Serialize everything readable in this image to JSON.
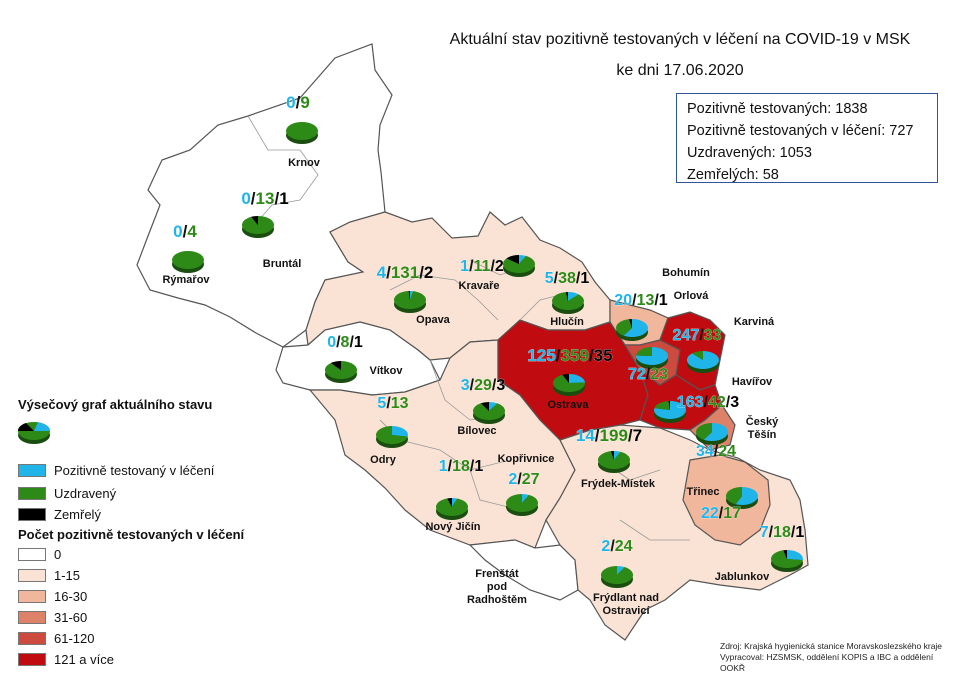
{
  "title": {
    "line1": "Aktuální stav pozitivně testovaných v léčení na COVID-19 v MSK",
    "line2": "ke dni 17.06.2020"
  },
  "stats": {
    "positive": "Pozitivně testovaných: 1838",
    "in_treatment": "Pozitivně testovaných v léčení: 727",
    "recovered": "Uzdravených: 1053",
    "deaths": "Zemřelých: 58"
  },
  "legend_pie": {
    "title": "Výsečový graf aktuálního stavu",
    "items": [
      {
        "label": "Pozitivně testovaný v léčení",
        "color": "#1fb5e8"
      },
      {
        "label": "Uzdravený",
        "color": "#2e8a16"
      },
      {
        "label": "Zemřelý",
        "color": "#000000"
      }
    ]
  },
  "legend_choropleth": {
    "title": "Počet pozitivně testovaných v léčení",
    "classes": [
      {
        "label": "0",
        "color": "#ffffff"
      },
      {
        "label": "1-15",
        "color": "#fae3d4"
      },
      {
        "label": "16-30",
        "color": "#f0b79c"
      },
      {
        "label": "31-60",
        "color": "#dd8268"
      },
      {
        "label": "61-120",
        "color": "#cc4a3e"
      },
      {
        "label": "121 a více",
        "color": "#c00c10"
      }
    ]
  },
  "source": {
    "line1": "Zdroj: Krajská hygienická stanice Moravskoslezského kraje",
    "line2": "Vypracoval: HZSMSK, oddělení KOPIS a IBC a oddělení OOKŘ"
  },
  "regions": [
    {
      "name": "Krnov",
      "active": 0,
      "recovered": 9,
      "deaths": null,
      "counts": [
        "0",
        "9"
      ],
      "class": "0"
    },
    {
      "name": "Bruntál",
      "active": 0,
      "recovered": 13,
      "deaths": 1,
      "counts": [
        "0",
        "13",
        "1"
      ],
      "class": "0"
    },
    {
      "name": "Rýmařov",
      "active": 0,
      "recovered": 4,
      "deaths": null,
      "counts": [
        "0",
        "4"
      ],
      "class": "0"
    },
    {
      "name": "Vítkov",
      "active": 0,
      "recovered": 8,
      "deaths": 1,
      "counts": [
        "0",
        "8",
        "1"
      ],
      "class": "0"
    },
    {
      "name": "Opava",
      "active": 4,
      "recovered": 131,
      "deaths": 2,
      "counts": [
        "4",
        "131",
        "2"
      ],
      "class": "1-15"
    },
    {
      "name": "Kravaře",
      "active": 1,
      "recovered": 11,
      "deaths": 2,
      "counts": [
        "1",
        "11",
        "2"
      ],
      "class": "1-15"
    },
    {
      "name": "Hlučín",
      "active": 5,
      "recovered": 38,
      "deaths": 1,
      "counts": [
        "5",
        "38",
        "1"
      ],
      "class": "1-15"
    },
    {
      "name": "Bohumín",
      "active": 20,
      "recovered": 13,
      "deaths": 1,
      "counts": [
        "20",
        "13",
        "1"
      ],
      "class": "16-30"
    },
    {
      "name": "Orlová",
      "active": 72,
      "recovered": 23,
      "deaths": null,
      "counts": [
        "72",
        "23"
      ],
      "class": "61-120"
    },
    {
      "name": "Karviná",
      "active": 247,
      "recovered": 33,
      "deaths": null,
      "counts": [
        "247",
        "33"
      ],
      "class": "121 a více"
    },
    {
      "name": "Havířov",
      "active": 163,
      "recovered": 42,
      "deaths": 3,
      "counts": [
        "163",
        "42",
        "3"
      ],
      "class": "121 a více"
    },
    {
      "name": "Český Těšín",
      "active": 34,
      "recovered": 24,
      "deaths": null,
      "counts": [
        "34",
        "24"
      ],
      "class": "31-60"
    },
    {
      "name": "Ostrava",
      "active": 125,
      "recovered": 359,
      "deaths": 35,
      "counts": [
        "125",
        "359",
        "35"
      ],
      "class": "121 a více"
    },
    {
      "name": "Bílovec",
      "active": 3,
      "recovered": 29,
      "deaths": 3,
      "counts": [
        "3",
        "29",
        "3"
      ],
      "class": "1-15"
    },
    {
      "name": "Odry",
      "active": 5,
      "recovered": 13,
      "deaths": null,
      "counts": [
        "5",
        "13"
      ],
      "class": "1-15"
    },
    {
      "name": "Nový Jičín",
      "active": 1,
      "recovered": 18,
      "deaths": 1,
      "counts": [
        "1",
        "18",
        "1"
      ],
      "class": "1-15"
    },
    {
      "name": "Kopřivnice",
      "active": 2,
      "recovered": 27,
      "deaths": null,
      "counts": [
        "2",
        "27"
      ],
      "class": "1-15"
    },
    {
      "name": "Frýdek-Místek",
      "active": 14,
      "recovered": 199,
      "deaths": 7,
      "counts": [
        "14",
        "199",
        "7"
      ],
      "class": "1-15"
    },
    {
      "name": "Třinec",
      "active": 22,
      "recovered": 17,
      "deaths": null,
      "counts": [
        "22",
        "17"
      ],
      "class": "16-30"
    },
    {
      "name": "Jablunkov",
      "active": 7,
      "recovered": 18,
      "deaths": 1,
      "counts": [
        "7",
        "18",
        "1"
      ],
      "class": "1-15"
    },
    {
      "name": "Frýdlant nad Ostravicí",
      "active": 2,
      "recovered": 24,
      "deaths": null,
      "counts": [
        "2",
        "24"
      ],
      "class": "1-15"
    },
    {
      "name": "Frenštát pod Radhoštěm",
      "active": null,
      "recovered": null,
      "deaths": null,
      "counts": [],
      "class": "0"
    }
  ]
}
